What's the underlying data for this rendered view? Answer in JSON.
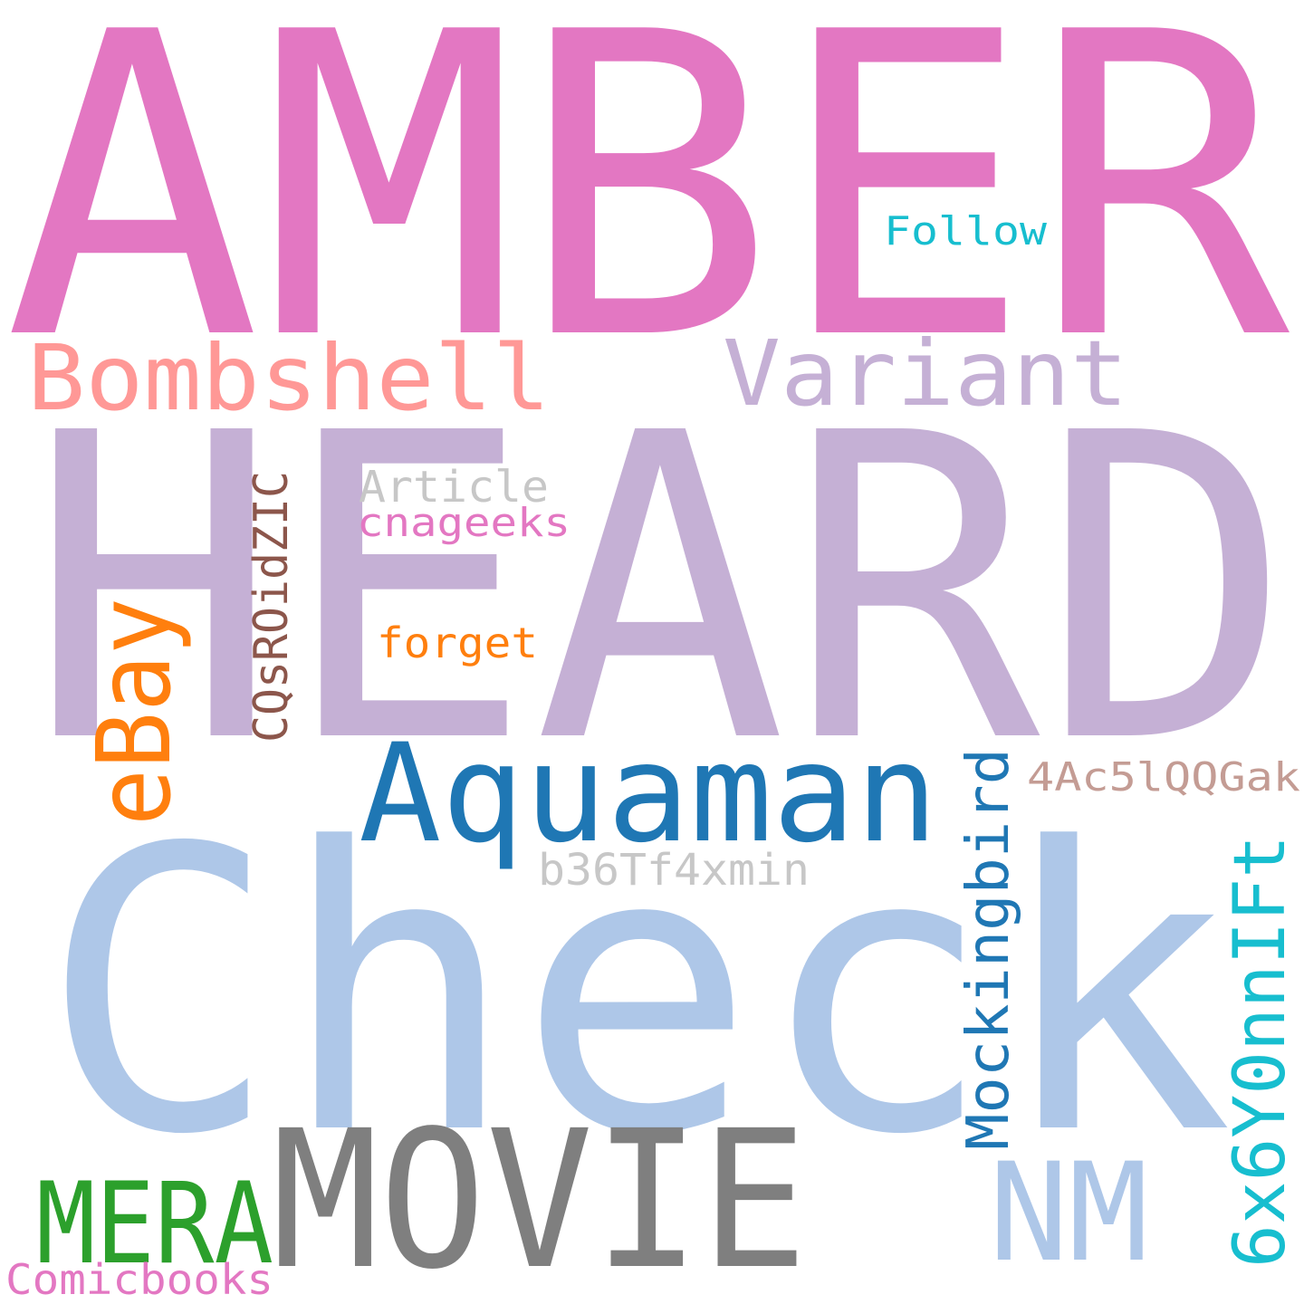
{
  "words": [
    {
      "id": "amber",
      "text": "AMBER",
      "color": "#e377c2"
    },
    {
      "id": "heard",
      "text": "HEARD",
      "color": "#c5b0d5"
    },
    {
      "id": "check",
      "text": "Check",
      "color": "#aec7e8"
    },
    {
      "id": "bombshell",
      "text": "Bombshell",
      "color": "#ff9896"
    },
    {
      "id": "variant",
      "text": "Variant",
      "color": "#c5b0d5"
    },
    {
      "id": "follow",
      "text": "Follow",
      "color": "#17becf"
    },
    {
      "id": "aquaman",
      "text": "Aquaman",
      "color": "#1f77b4"
    },
    {
      "id": "movie",
      "text": "MOVIE",
      "color": "#7f7f7f"
    },
    {
      "id": "ebay",
      "text": "eBay",
      "color": "#ff7f0e"
    },
    {
      "id": "cqsroidzic",
      "text": "CQsROidZIC",
      "color": "#8c564b"
    },
    {
      "id": "article",
      "text": "Article",
      "color": "#c7c7c7"
    },
    {
      "id": "cnageeks",
      "text": "cnageeks",
      "color": "#e377c2"
    },
    {
      "id": "forget",
      "text": "forget",
      "color": "#ff7f0e"
    },
    {
      "id": "mockingbird",
      "text": "Mockingbird",
      "color": "#1f77b4"
    },
    {
      "id": "code4ac",
      "text": "4Ac5lQQGak",
      "color": "#c49c94"
    },
    {
      "id": "b36",
      "text": "b36Tf4xmin",
      "color": "#c7c7c7"
    },
    {
      "id": "code6x6",
      "text": "6x6Y0nnIFt",
      "color": "#17becf"
    },
    {
      "id": "nm",
      "text": "NM",
      "color": "#aec7e8"
    },
    {
      "id": "mera",
      "text": "MERA",
      "color": "#2ca02c"
    },
    {
      "id": "comicbooks",
      "text": "Comicbooks",
      "color": "#e377c2"
    }
  ]
}
